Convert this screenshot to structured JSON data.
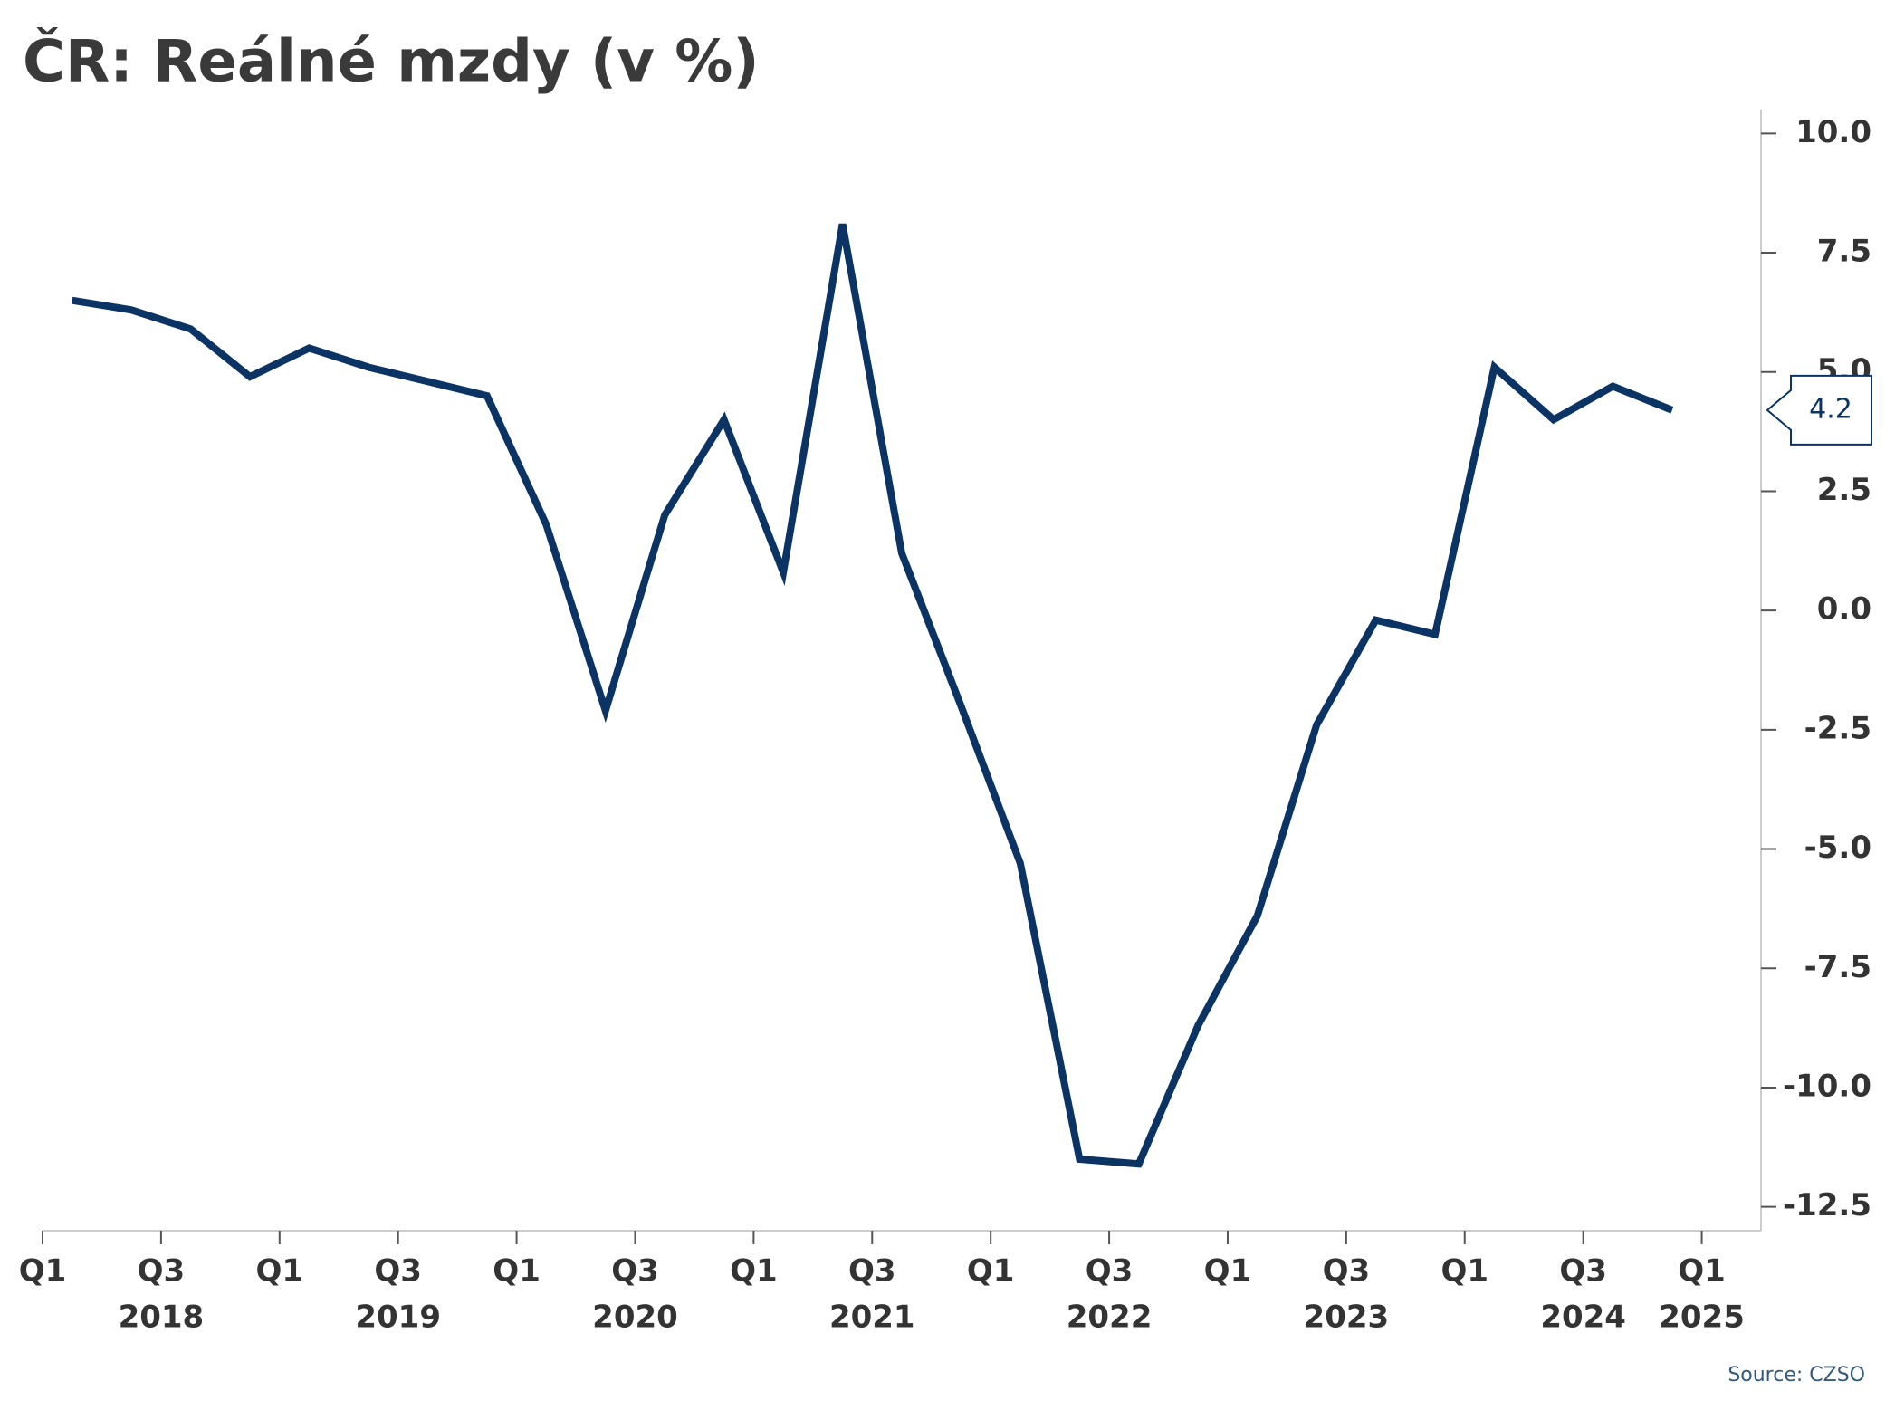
{
  "chart_data": {
    "type": "line",
    "title": "ČR: Reálné mzdy (v %)",
    "source": "Source: CZSO",
    "x": [
      0.5,
      1.5,
      2.5,
      3.5,
      4.5,
      5.5,
      6.5,
      7.5,
      8.5,
      9.5,
      10.5,
      11.5,
      12.5,
      13.5,
      14.5,
      15.5,
      16.5,
      17.5,
      18.5,
      19.5,
      20.5,
      21.5,
      22.5,
      23.5,
      24.5,
      25.5,
      26.5,
      27.5
    ],
    "series": [
      {
        "name": "Reálné mzdy",
        "color": "#0b3363",
        "values": [
          6.5,
          6.3,
          5.9,
          4.9,
          5.5,
          5.1,
          4.8,
          4.5,
          1.8,
          -2.1,
          2.0,
          4.0,
          0.8,
          8.1,
          1.2,
          -2.0,
          -5.3,
          -11.5,
          -11.6,
          -8.7,
          -6.4,
          -2.4,
          -0.2,
          -0.5,
          5.1,
          4.0,
          4.7,
          4.2
        ]
      }
    ],
    "xlim": [
      0,
      29
    ],
    "xticks": [
      {
        "value": 0,
        "label": "Q1"
      },
      {
        "value": 2,
        "label": "Q3"
      },
      {
        "value": 4,
        "label": "Q1"
      },
      {
        "value": 6,
        "label": "Q3"
      },
      {
        "value": 8,
        "label": "Q1"
      },
      {
        "value": 10,
        "label": "Q3"
      },
      {
        "value": 12,
        "label": "Q1"
      },
      {
        "value": 14,
        "label": "Q3"
      },
      {
        "value": 16,
        "label": "Q1"
      },
      {
        "value": 18,
        "label": "Q3"
      },
      {
        "value": 20,
        "label": "Q1"
      },
      {
        "value": 22,
        "label": "Q3"
      },
      {
        "value": 24,
        "label": "Q1"
      },
      {
        "value": 26,
        "label": "Q3"
      },
      {
        "value": 28,
        "label": "Q1"
      }
    ],
    "xticks_years": [
      {
        "value": 2,
        "label": "2018"
      },
      {
        "value": 6,
        "label": "2019"
      },
      {
        "value": 10,
        "label": "2020"
      },
      {
        "value": 14,
        "label": "2021"
      },
      {
        "value": 18,
        "label": "2022"
      },
      {
        "value": 22,
        "label": "2023"
      },
      {
        "value": 26,
        "label": "2024"
      },
      {
        "value": 28,
        "label": "2025"
      }
    ],
    "ylim": [
      -13.0,
      10.5
    ],
    "yticks": [
      {
        "value": 10,
        "label": "10.0"
      },
      {
        "value": 7.5,
        "label": "7.5"
      },
      {
        "value": 5,
        "label": "5.0"
      },
      {
        "value": 2.5,
        "label": "2.5"
      },
      {
        "value": 0,
        "label": "0.0"
      },
      {
        "value": -2.5,
        "label": "-2.5"
      },
      {
        "value": -5,
        "label": "-5.0"
      },
      {
        "value": -7.5,
        "label": "-7.5"
      },
      {
        "value": -10,
        "label": "-10.0"
      },
      {
        "value": -12.5,
        "label": "-12.5"
      }
    ]
  }
}
